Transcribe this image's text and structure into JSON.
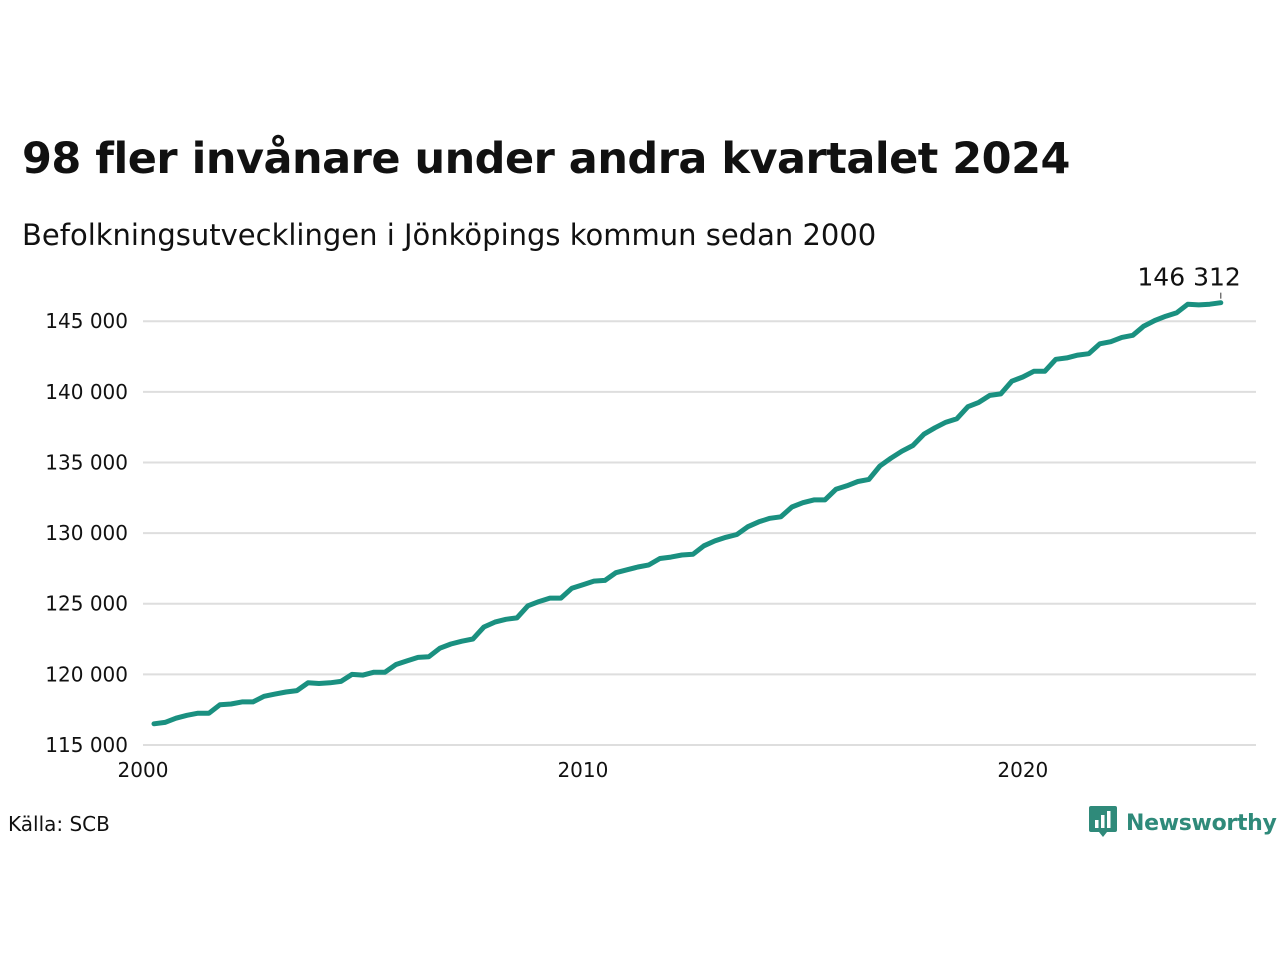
{
  "title": "98 fler invånare under andra kvartalet 2024",
  "subtitle": "Befolkningsutvecklingen i Jönköpings kommun sedan 2000",
  "source": "Källa: SCB",
  "brand": {
    "name": "Newsworthy",
    "icon": "newsworthy-chart-icon",
    "color": "#2f8a7a"
  },
  "chart_data": {
    "type": "line",
    "title": "98 fler invånare under andra kvartalet 2024",
    "subtitle": "Befolkningsutvecklingen i Jönköpings kommun sedan 2000",
    "xlabel": "",
    "ylabel": "",
    "xlim": [
      2000,
      2025.3
    ],
    "ylim": [
      115000,
      146500
    ],
    "x_ticks": [
      2000,
      2010,
      2020
    ],
    "x_tick_labels": [
      "2000",
      "2010",
      "2020"
    ],
    "y_ticks": [
      115000,
      120000,
      125000,
      130000,
      135000,
      140000,
      145000
    ],
    "y_tick_labels": [
      "115 000",
      "120 000",
      "125 000",
      "130 000",
      "135 000",
      "140 000",
      "145 000"
    ],
    "grid": "horizontal",
    "line_color": "#1a9080",
    "end_label": "146 312",
    "series": [
      {
        "x": [
          2000.25,
          2000.5,
          2000.75,
          2001.0,
          2001.25,
          2001.5,
          2001.75,
          2002.0,
          2002.25,
          2002.5,
          2002.75,
          2003.0,
          2003.25,
          2003.5,
          2003.75,
          2004.0,
          2004.25,
          2004.5,
          2004.75,
          2005.0,
          2005.25,
          2005.5,
          2005.75,
          2006.0,
          2006.25,
          2006.5,
          2006.75,
          2007.0,
          2007.25,
          2007.5,
          2007.75,
          2008.0,
          2008.25,
          2008.5,
          2008.75,
          2009.0,
          2009.25,
          2009.5,
          2009.75,
          2010.0,
          2010.25,
          2010.5,
          2010.75,
          2011.0,
          2011.25,
          2011.5,
          2011.75,
          2012.0,
          2012.25,
          2012.5,
          2012.75,
          2013.0,
          2013.25,
          2013.5,
          2013.75,
          2014.0,
          2014.25,
          2014.5,
          2014.75,
          2015.0,
          2015.25,
          2015.5,
          2015.75,
          2016.0,
          2016.25,
          2016.5,
          2016.75,
          2017.0,
          2017.25,
          2017.5,
          2017.75,
          2018.0,
          2018.25,
          2018.5,
          2018.75,
          2019.0,
          2019.25,
          2019.5,
          2019.75,
          2020.0,
          2020.25,
          2020.5,
          2020.75,
          2021.0,
          2021.25,
          2021.5,
          2021.75,
          2022.0,
          2022.25,
          2022.5,
          2022.75,
          2023.0,
          2023.25,
          2023.5,
          2023.75,
          2024.0,
          2024.25,
          2024.5
        ],
        "values": [
          116500,
          116600,
          116900,
          117100,
          117250,
          117250,
          117850,
          117900,
          118050,
          118050,
          118450,
          118600,
          118750,
          118850,
          119400,
          119350,
          119400,
          119500,
          120000,
          119950,
          120150,
          120150,
          120700,
          120950,
          121200,
          121250,
          121850,
          122150,
          122350,
          122500,
          123350,
          123700,
          123900,
          124000,
          124850,
          125150,
          125400,
          125400,
          126100,
          126350,
          126600,
          126650,
          127200,
          127400,
          127600,
          127750,
          128200,
          128300,
          128450,
          128500,
          129100,
          129450,
          129700,
          129900,
          130450,
          130800,
          131050,
          131150,
          131850,
          132150,
          132350,
          132350,
          133100,
          133350,
          133650,
          133800,
          134750,
          135300,
          135800,
          136200,
          137000,
          137450,
          137850,
          138100,
          138950,
          139250,
          139750,
          139850,
          140750,
          141050,
          141450,
          141450,
          142300,
          142400,
          142600,
          142700,
          143400,
          143550,
          143850,
          144000,
          144650,
          145050,
          145350,
          145600,
          146200,
          146150,
          146200,
          146312
        ]
      }
    ]
  }
}
